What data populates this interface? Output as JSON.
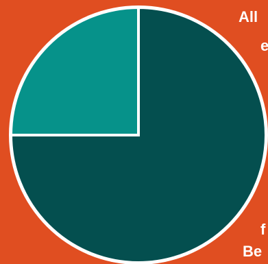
{
  "colors": {
    "background": "#e04e21",
    "slice_large": "#044f4f",
    "slice_small": "#06928a",
    "border": "#ffffff"
  },
  "labels": {
    "top_line1": "All",
    "top_line2": "e",
    "bottom_line1": "f",
    "bottom_line2": "Be"
  },
  "chart_data": {
    "type": "pie",
    "title": "",
    "slices": [
      {
        "label": "",
        "value": 75,
        "color": "#044f4f"
      },
      {
        "label": "",
        "value": 25,
        "color": "#06928a"
      }
    ],
    "start": "12 o'clock",
    "direction": "clockwise",
    "legend": "none"
  }
}
